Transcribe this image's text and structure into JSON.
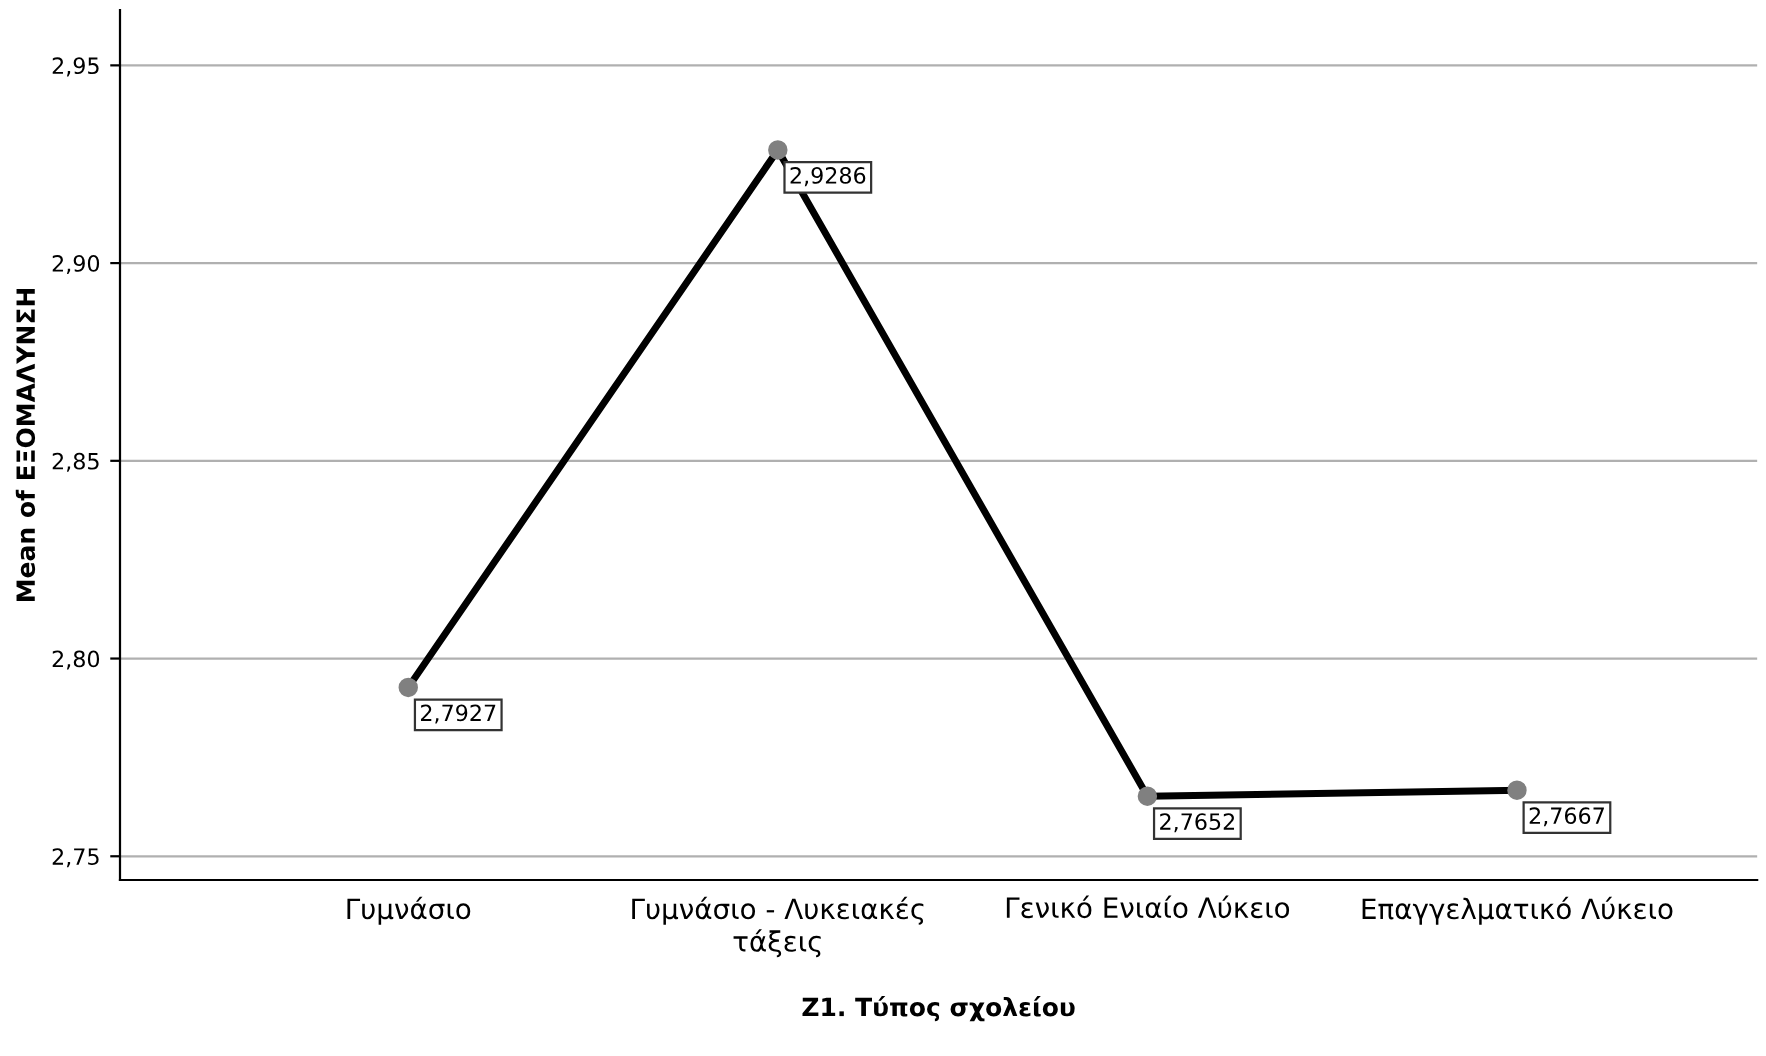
{
  "chart_data": {
    "type": "line",
    "xlabel": "Z1. Τύπος σχολείου",
    "ylabel": "Mean of ΕΞΟΜΑΛΥΝΣΗ",
    "categories": [
      "Γυμνάσιο",
      "Γυμνάσιο - Λυκειακές\nτάξεις",
      "Γενικό Ενιαίο Λύκειο",
      "Επαγγελματικό Λύκειο"
    ],
    "series": [
      {
        "color": "#000000",
        "values": [
          2.7927,
          2.9286,
          2.7652,
          2.7667
        ],
        "value_labels": [
          "2,7927",
          "2,9286",
          "2,7652",
          "2,7667"
        ]
      }
    ],
    "ylim": [
      2.744,
      2.964
    ],
    "yticks": [
      {
        "value": 2.75,
        "label": "2,75"
      },
      {
        "value": 2.8,
        "label": "2,80"
      },
      {
        "value": 2.85,
        "label": "2,85"
      },
      {
        "value": 2.9,
        "label": "2,90"
      },
      {
        "value": 2.95,
        "label": "2,95"
      }
    ],
    "grid": "y",
    "marker": "circle",
    "line_style": "solid"
  }
}
